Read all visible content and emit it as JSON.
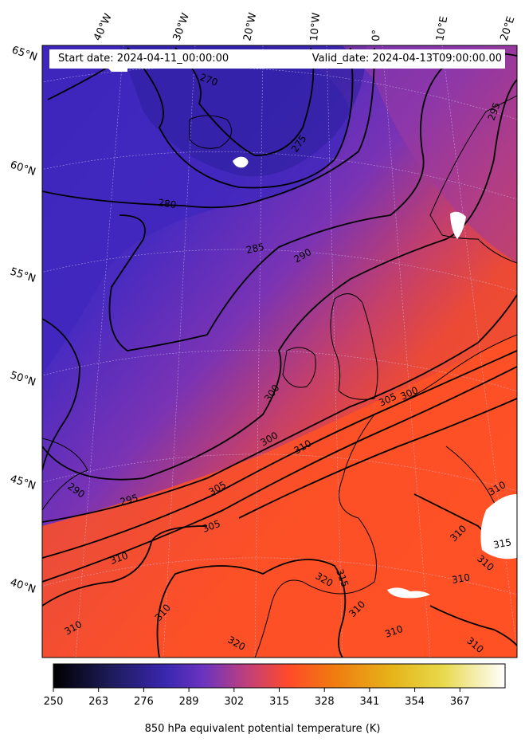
{
  "header": {
    "start_date": "Start date: 2024-04-11_00:00:00",
    "valid_date": "Valid_date: 2024-04-13T09:00:00.00"
  },
  "longitude_labels": [
    "40°W",
    "30°W",
    "20°W",
    "10°W",
    "0°",
    "10°E",
    "20°E"
  ],
  "latitude_labels": [
    "65°N",
    "60°N",
    "55°N",
    "50°N",
    "45°N",
    "40°N"
  ],
  "contour_labels": [
    "270",
    "275",
    "280",
    "285",
    "290",
    "295",
    "300",
    "305",
    "310",
    "315",
    "320"
  ],
  "colorbar": {
    "title": "850 hPa equivalent potential temperature (K)",
    "ticks": [
      "250",
      "263",
      "276",
      "289",
      "302",
      "315",
      "328",
      "341",
      "354",
      "367"
    ],
    "colormap": "CMRmap",
    "range": [
      250,
      380
    ]
  },
  "colors": {
    "cold": "#3a23b8",
    "cool": "#6b33c0",
    "mild": "#b43a8c",
    "warm": "#e2452f",
    "hot": "#ff5326"
  }
}
